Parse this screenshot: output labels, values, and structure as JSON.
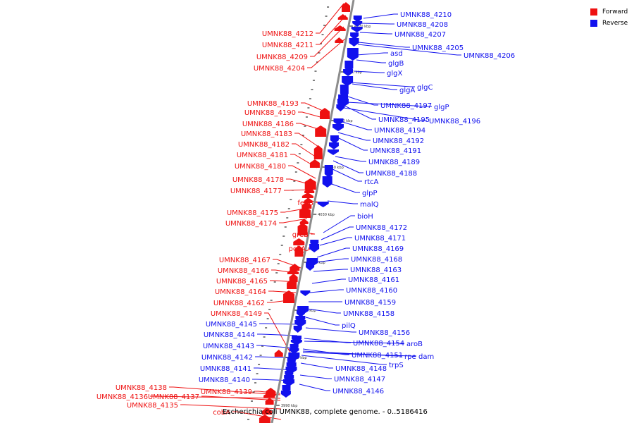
{
  "legend": {
    "forward_label": "Forward",
    "reverse_label": "Reverse",
    "forward_color": "#ee1111",
    "reverse_color": "#1111ee"
  },
  "colors": {
    "forward": "#ee1111",
    "reverse": "#1111ee",
    "backbone": "#8c8c8c"
  },
  "genome_title": "Escherichia coli UMNK88, complete genome. - 0..5186416",
  "ticks": [
    "4070 kbp",
    "4060 kbp",
    "4050 kbp",
    "4040 kbp",
    "4030 kbp",
    "4020 kbp",
    "4010 kbp",
    "4000 kbp",
    "3990 kbp"
  ],
  "forward_labels": [
    "UMNK88_4212",
    "UMNK88_4211",
    "UMNK88_4209",
    "UMNK88_4204",
    "UMNK88_4193",
    "UMNK88_4190",
    "UMNK88_4186",
    "UMNK88_4183",
    "UMNK88_4182",
    "UMNK88_4181",
    "UMNK88_4180",
    "UMNK88_4178",
    "UMNK88_4177",
    "feoB",
    "UMNK88_4175",
    "UMNK88_4174",
    "greB",
    "pckA",
    "UMNK88_4167",
    "UMNK88_4166",
    "UMNK88_4165",
    "UMNK88_4164",
    "UMNK88_4162",
    "UMNK88_4149",
    "UMNK88_4138",
    "UMNK88_4136",
    "UMNK88_4137",
    "UMNK88_4139",
    "UMNK88_4135",
    "cobA"
  ],
  "reverse_labels": [
    "UMNK88_4210",
    "UMNK88_4208",
    "UMNK88_4207",
    "UMNK88_4205",
    "UMNK88_4206",
    "asd",
    "glgB",
    "glgX",
    "glgA",
    "glgC",
    "UMNK88_4197",
    "glgP",
    "UMNK88_4195",
    "UMNK88_4196",
    "UMNK88_4194",
    "UMNK88_4192",
    "UMNK88_4191",
    "UMNK88_4189",
    "UMNK88_4188",
    "rtcA",
    "glpP",
    "malQ",
    "bioH",
    "UMNK88_4172",
    "UMNK88_4171",
    "UMNK88_4169",
    "UMNK88_4168",
    "UMNK88_4163",
    "UMNK88_4161",
    "UMNK88_4160",
    "UMNK88_4159",
    "UMNK88_4158",
    "pilQ",
    "UMNK88_4156",
    "UMNK88_4154",
    "aroB",
    "UMNK88_4151",
    "rpe",
    "dam",
    "trpS",
    "UMNK88_4148",
    "UMNK88_4147",
    "UMNK88_4146",
    "UMNK88_4145",
    "UMNK88_4144",
    "UMNK88_4143",
    "UMNK88_4142",
    "UMNK88_4141",
    "UMNK88_4140"
  ]
}
